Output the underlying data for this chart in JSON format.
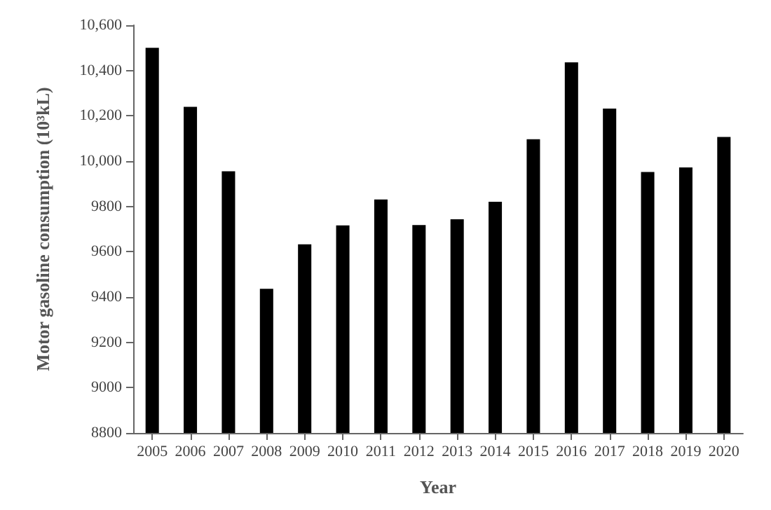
{
  "chart_data": {
    "type": "bar",
    "xlabel": "Year",
    "ylabel": "Motor gasoline consumption (10³kL)",
    "categories": [
      "2005",
      "2006",
      "2007",
      "2008",
      "2009",
      "2010",
      "2011",
      "2012",
      "2013",
      "2014",
      "2015",
      "2016",
      "2017",
      "2018",
      "2019",
      "2020"
    ],
    "values": [
      10500,
      10240,
      9955,
      9436,
      9633,
      9716,
      9831,
      9718,
      9743,
      9821,
      10097,
      10436,
      10232,
      9952,
      9972,
      10107
    ],
    "color": "#000000",
    "ylim": [
      8800,
      10600
    ],
    "yticks": [
      8800,
      9000,
      9200,
      9400,
      9600,
      9800,
      {
        "value": 10000,
        "label": "10,000"
      },
      {
        "value": 10200,
        "label": "10,200"
      },
      {
        "value": 10400,
        "label": "10,400"
      },
      {
        "value": 10600,
        "label": "10,600"
      }
    ],
    "grid": false
  }
}
